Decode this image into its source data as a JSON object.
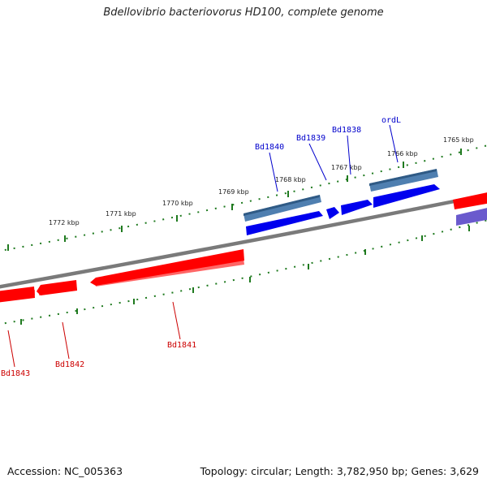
{
  "title": "Bdellovibrio bacteriovorus HD100, complete genome",
  "footer": {
    "accession": "Accession: NC_005363",
    "summary": "Topology: circular; Length: 3,782,950 bp; Genes: 3,629"
  },
  "scale_labels": [
    "1765 kbp",
    "1766 kbp",
    "1767 kbp",
    "1768 kbp",
    "1769 kbp",
    "1770 kbp",
    "1771 kbp",
    "1772 kbp"
  ],
  "genes_forward": [
    "ordL",
    "Bd1838",
    "Bd1839",
    "Bd1840"
  ],
  "genes_reverse": [
    "Bd1841",
    "Bd1842",
    "Bd1843"
  ],
  "colors": {
    "backbone": "#7a7a7a",
    "tick": "#1f7a1f",
    "forward_cds": "#0000ee",
    "forward_gene": "#4f7fb0",
    "reverse_cds": "#ff0000",
    "reverse_gene": "#ff4d4d",
    "other_cds": "#6a5acd",
    "forward_label": "#0000cc",
    "reverse_label": "#cc0000"
  }
}
